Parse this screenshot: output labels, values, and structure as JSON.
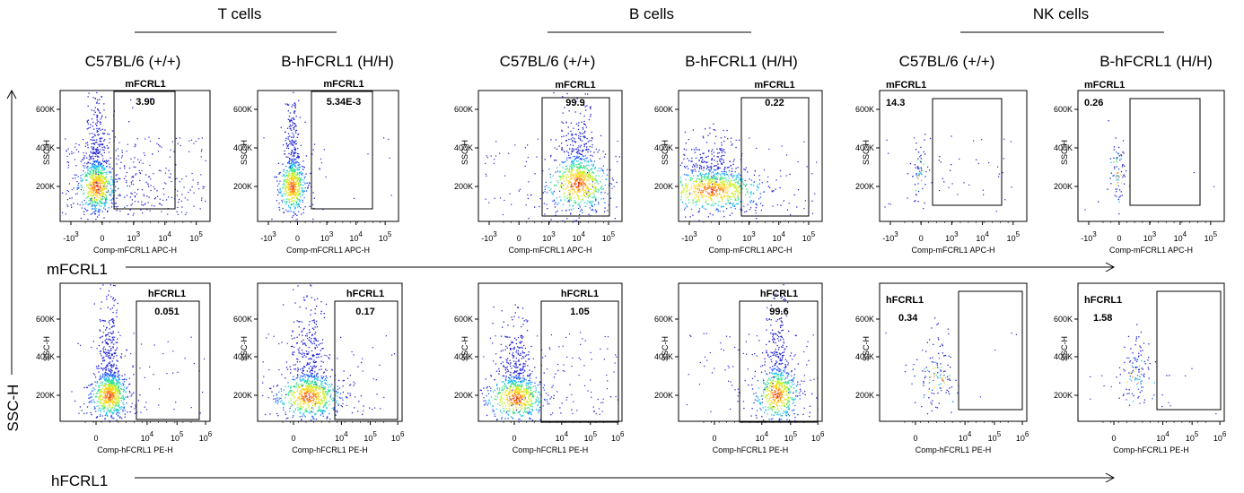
{
  "figure": {
    "groups": [
      {
        "label": "T cells"
      },
      {
        "label": "B cells"
      },
      {
        "label": "NK cells"
      }
    ],
    "genotypes": [
      "C57BL/6 (+/+)",
      "B-hFCRL1 (H/H)",
      "C57BL/6 (+/+)",
      "B-hFCRL1 (H/H)",
      "C57BL/6 (+/+)",
      "B-hFCRL1 (H/H)"
    ],
    "row_labels": [
      "mFCRL1",
      "hFCRL1"
    ],
    "shared_ylabel": "SSC-H"
  },
  "chart_data": [
    {
      "type": "scatter",
      "title": "C57BL/6 (+/+)",
      "group": "T cells",
      "xlabel": "Comp-mFCRL1 APC-H",
      "ylabel": "SSC-H",
      "gate_label": "mFCRL1",
      "gate_value": "3.90",
      "gate_percent": 3.9,
      "yticks": [
        "200K",
        "400K",
        "600K"
      ],
      "xticks": [
        "-10^3",
        "0",
        "10^3",
        "10^4",
        "10^5"
      ]
    },
    {
      "type": "scatter",
      "title": "B-hFCRL1 (H/H)",
      "group": "T cells",
      "xlabel": "Comp-mFCRL1 APC-H",
      "ylabel": "SSC-H",
      "gate_label": "mFCRL1",
      "gate_value": "5.34E-3",
      "gate_percent": 0.00534,
      "yticks": [
        "200K",
        "400K",
        "600K"
      ],
      "xticks": [
        "-10^3",
        "0",
        "10^3",
        "10^4",
        "10^5"
      ]
    },
    {
      "type": "scatter",
      "title": "C57BL/6 (+/+)",
      "group": "B cells",
      "xlabel": "Comp-mFCRL1 APC-H",
      "ylabel": "SSC-H",
      "gate_label": "mFCRL1",
      "gate_value": "99.9",
      "gate_percent": 99.9,
      "yticks": [
        "200K",
        "400K",
        "600K"
      ],
      "xticks": [
        "-10^3",
        "0",
        "10^3",
        "10^4",
        "10^5"
      ]
    },
    {
      "type": "scatter",
      "title": "B-hFCRL1 (H/H)",
      "group": "B cells",
      "xlabel": "Comp-mFCRL1 APC-H",
      "ylabel": "SSC-H",
      "gate_label": "mFCRL1",
      "gate_value": "0.22",
      "gate_percent": 0.22,
      "yticks": [
        "200K",
        "400K",
        "600K"
      ],
      "xticks": [
        "-10^3",
        "0",
        "10^3",
        "10^4",
        "10^5"
      ]
    },
    {
      "type": "scatter",
      "title": "C57BL/6 (+/+)",
      "group": "NK cells",
      "xlabel": "Comp-mFCRL1 APC-H",
      "ylabel": "SSC-H",
      "gate_label": "mFCRL1",
      "gate_value": "14.3",
      "gate_percent": 14.3,
      "yticks": [
        "200K",
        "400K",
        "600K"
      ],
      "xticks": [
        "-10^3",
        "0",
        "10^3",
        "10^4",
        "10^5"
      ]
    },
    {
      "type": "scatter",
      "title": "B-hFCRL1 (H/H)",
      "group": "NK cells",
      "xlabel": "Comp-mFCRL1 APC-H",
      "ylabel": "SSC-H",
      "gate_label": "mFCRL1",
      "gate_value": "0.26",
      "gate_percent": 0.26,
      "yticks": [
        "200K",
        "400K",
        "600K"
      ],
      "xticks": [
        "-10^3",
        "0",
        "10^3",
        "10^4",
        "10^5"
      ]
    },
    {
      "type": "scatter",
      "title": "C57BL/6 (+/+)",
      "group": "T cells",
      "xlabel": "Comp-hFCRL1 PE-H",
      "ylabel": "SSC-H",
      "gate_label": "hFCRL1",
      "gate_value": "0.051",
      "gate_percent": 0.051,
      "yticks": [
        "200K",
        "400K",
        "600K"
      ],
      "xticks": [
        "0",
        "10^4",
        "10^5",
        "10^6"
      ]
    },
    {
      "type": "scatter",
      "title": "B-hFCRL1 (H/H)",
      "group": "T cells",
      "xlabel": "Comp-hFCRL1 PE-H",
      "ylabel": "SSC-H",
      "gate_label": "hFCRL1",
      "gate_value": "0.17",
      "gate_percent": 0.17,
      "yticks": [
        "200K",
        "400K",
        "600K"
      ],
      "xticks": [
        "0",
        "10^4",
        "10^5",
        "10^6"
      ]
    },
    {
      "type": "scatter",
      "title": "C57BL/6 (+/+)",
      "group": "B cells",
      "xlabel": "Comp-hFCRL1 PE-H",
      "ylabel": "SSC-H",
      "gate_label": "hFCRL1",
      "gate_value": "1.05",
      "gate_percent": 1.05,
      "yticks": [
        "200K",
        "400K",
        "600K"
      ],
      "xticks": [
        "0",
        "10^4",
        "10^5",
        "10^6"
      ]
    },
    {
      "type": "scatter",
      "title": "B-hFCRL1 (H/H)",
      "group": "B cells",
      "xlabel": "Comp-hFCRL1 PE-H",
      "ylabel": "SSC-H",
      "gate_label": "hFCRL1",
      "gate_value": "99.6",
      "gate_percent": 99.6,
      "yticks": [
        "200K",
        "400K",
        "600K"
      ],
      "xticks": [
        "0",
        "10^4",
        "10^5",
        "10^6"
      ]
    },
    {
      "type": "scatter",
      "title": "C57BL/6 (+/+)",
      "group": "NK cells",
      "xlabel": "Comp-hFCRL1 PE-H",
      "ylabel": "SSC-H",
      "gate_label": "hFCRL1",
      "gate_value": "0.34",
      "gate_percent": 0.34,
      "yticks": [
        "200K",
        "400K",
        "600K"
      ],
      "xticks": [
        "0",
        "10^4",
        "10^5",
        "10^6"
      ]
    },
    {
      "type": "scatter",
      "title": "B-hFCRL1 (H/H)",
      "group": "NK cells",
      "xlabel": "Comp-hFCRL1 PE-H",
      "ylabel": "SSC-H",
      "gate_label": "hFCRL1",
      "gate_value": "1.58",
      "gate_percent": 1.58,
      "yticks": [
        "200K",
        "400K",
        "600K"
      ],
      "xticks": [
        "0",
        "10^4",
        "10^5",
        "10^6"
      ]
    }
  ]
}
